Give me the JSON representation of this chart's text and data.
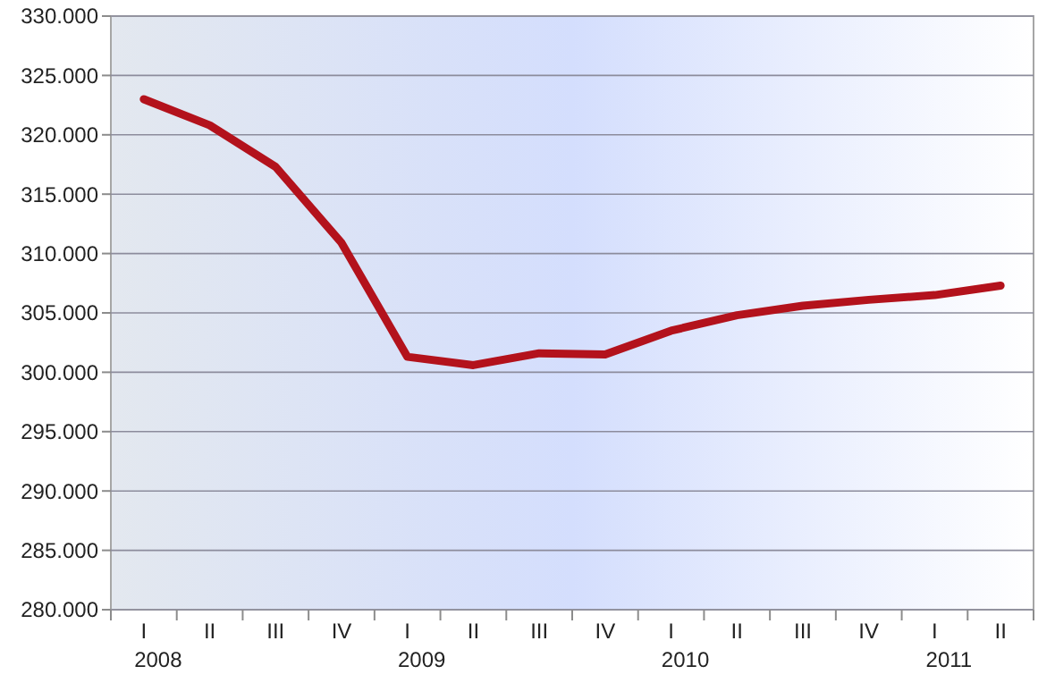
{
  "chart_data": {
    "type": "line",
    "categories": [
      "I\n2008",
      "II",
      "III",
      "IV",
      "I\n2009",
      "II",
      "III",
      "IV",
      "I\n2010",
      "II",
      "III",
      "IV",
      "I\n2011",
      "II"
    ],
    "series": [
      {
        "color": "#b3121c",
        "values": [
          323000,
          320800,
          317300,
          310900,
          301300,
          300600,
          301600,
          301500,
          303500,
          304800,
          305600,
          306100,
          306500,
          307300
        ]
      }
    ],
    "ylim": [
      280000,
      330000
    ],
    "yticks": [
      {
        "value": 280000,
        "label": "280.000"
      },
      {
        "value": 285000,
        "label": "285.000"
      },
      {
        "value": 290000,
        "label": "290.000"
      },
      {
        "value": 295000,
        "label": "295.000"
      },
      {
        "value": 300000,
        "label": "300.000"
      },
      {
        "value": 305000,
        "label": "305.000"
      },
      {
        "value": 310000,
        "label": "310.000"
      },
      {
        "value": 315000,
        "label": "315.000"
      },
      {
        "value": 320000,
        "label": "320.000"
      },
      {
        "value": 325000,
        "label": "325.000"
      },
      {
        "value": 330000,
        "label": "330.000"
      }
    ],
    "grid": "y",
    "marker": "none",
    "line_style": "solid"
  }
}
